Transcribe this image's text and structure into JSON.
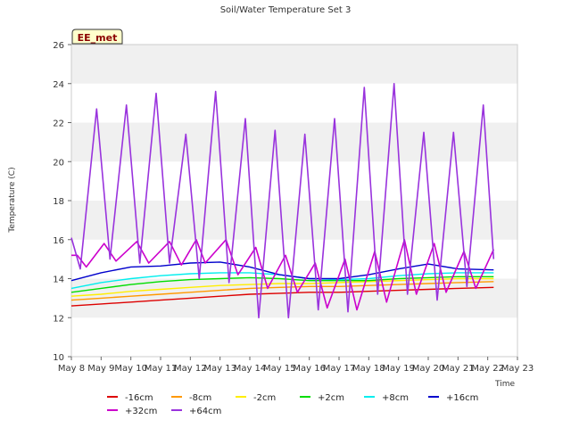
{
  "chart_data": {
    "type": "line",
    "title": "Soil/Water Temperature Set 3",
    "xlabel": "Time",
    "ylabel": "Temperature (C)",
    "badge": "EE_met",
    "ylim": [
      10,
      26
    ],
    "yticks": [
      10,
      12,
      14,
      16,
      18,
      20,
      22,
      24,
      26
    ],
    "xlim": [
      0,
      15
    ],
    "x_tick_labels": [
      "May 8",
      "May 9",
      "May 10",
      "May 11",
      "May 12",
      "May 13",
      "May 14",
      "May 15",
      "May 16",
      "May 17",
      "May 18",
      "May 19",
      "May 20",
      "May 21",
      "May 22",
      "May 23"
    ],
    "x_unit": "days since May 8",
    "grid": "horizontal bands",
    "legend": "bottom",
    "series": [
      {
        "name": "-16cm",
        "color": "#dd0000",
        "x": [
          0,
          1,
          2,
          3,
          4,
          5,
          6,
          7,
          8,
          9,
          10,
          11,
          12,
          13,
          14.2
        ],
        "values": [
          12.6,
          12.7,
          12.8,
          12.9,
          13.0,
          13.1,
          13.2,
          13.25,
          13.3,
          13.3,
          13.35,
          13.4,
          13.45,
          13.5,
          13.55
        ]
      },
      {
        "name": "-8cm",
        "color": "#ff9900",
        "x": [
          0,
          1,
          2,
          3,
          4,
          5,
          6,
          7,
          8,
          9,
          10,
          11,
          12,
          13,
          14.2
        ],
        "values": [
          12.9,
          13.0,
          13.1,
          13.2,
          13.3,
          13.4,
          13.5,
          13.55,
          13.6,
          13.6,
          13.65,
          13.7,
          13.75,
          13.8,
          13.85
        ]
      },
      {
        "name": "-2cm",
        "color": "#ffee00",
        "x": [
          0,
          1,
          2,
          3,
          4,
          5,
          6,
          7,
          8,
          9,
          10,
          11,
          12,
          13,
          14.2
        ],
        "values": [
          13.1,
          13.2,
          13.35,
          13.45,
          13.55,
          13.65,
          13.7,
          13.75,
          13.75,
          13.8,
          13.85,
          13.9,
          13.95,
          14.0,
          14.0
        ]
      },
      {
        "name": "+2cm",
        "color": "#00dd00",
        "x": [
          0,
          1,
          2,
          3,
          4,
          5,
          6,
          7,
          8,
          9,
          10,
          11,
          12,
          13,
          14.2
        ],
        "values": [
          13.3,
          13.5,
          13.7,
          13.85,
          13.95,
          14.0,
          14.05,
          14.0,
          13.9,
          13.9,
          13.9,
          14.0,
          14.05,
          14.1,
          14.1
        ]
      },
      {
        "name": "+8cm",
        "color": "#00eeee",
        "x": [
          0,
          1,
          2,
          3,
          4,
          5,
          6,
          7,
          8,
          9,
          10,
          11,
          12,
          13,
          14.2
        ],
        "values": [
          13.5,
          13.8,
          14.0,
          14.15,
          14.25,
          14.3,
          14.3,
          14.2,
          14.0,
          13.95,
          14.0,
          14.15,
          14.25,
          14.3,
          14.3
        ]
      },
      {
        "name": "+16cm",
        "color": "#0000cc",
        "x": [
          0,
          1,
          2,
          3,
          4,
          5,
          6,
          7,
          8,
          9,
          10,
          11,
          12,
          13,
          14.2
        ],
        "values": [
          13.9,
          14.3,
          14.6,
          14.65,
          14.8,
          14.85,
          14.6,
          14.2,
          14.0,
          14.0,
          14.2,
          14.5,
          14.75,
          14.5,
          14.45
        ]
      },
      {
        "name": "+32cm",
        "color": "#cc00cc",
        "x": [
          0,
          0.2,
          0.5,
          1.1,
          1.5,
          2.2,
          2.6,
          3.3,
          3.7,
          4.2,
          4.5,
          5.2,
          5.6,
          6.2,
          6.6,
          7.2,
          7.6,
          8.2,
          8.6,
          9.2,
          9.6,
          10.2,
          10.6,
          11.2,
          11.6,
          12.2,
          12.6,
          13.2,
          13.6,
          14.2
        ],
        "values": [
          15.2,
          15.2,
          14.6,
          15.8,
          14.9,
          15.9,
          14.8,
          15.9,
          14.7,
          16.0,
          14.8,
          16.0,
          14.2,
          15.6,
          13.5,
          15.2,
          13.3,
          14.8,
          12.5,
          15.0,
          12.4,
          15.4,
          12.8,
          16.0,
          13.2,
          15.8,
          13.3,
          15.4,
          13.5,
          15.5
        ]
      },
      {
        "name": "+64cm",
        "color": "#9933dd",
        "x": [
          0,
          0.3,
          0.85,
          1.3,
          1.85,
          2.3,
          2.85,
          3.3,
          3.85,
          4.3,
          4.85,
          5.3,
          5.85,
          6.3,
          6.85,
          7.3,
          7.85,
          8.3,
          8.85,
          9.3,
          9.85,
          10.3,
          10.85,
          11.3,
          11.85,
          12.3,
          12.85,
          13.3,
          13.85,
          14.2
        ],
        "values": [
          16.1,
          14.5,
          22.7,
          15.0,
          22.9,
          14.8,
          23.5,
          14.8,
          21.4,
          14.0,
          23.6,
          13.8,
          22.2,
          12.0,
          21.6,
          12.0,
          21.4,
          12.4,
          22.2,
          12.3,
          23.8,
          13.2,
          24.0,
          13.2,
          21.5,
          12.9,
          21.5,
          13.6,
          22.9,
          15.0
        ]
      }
    ]
  }
}
